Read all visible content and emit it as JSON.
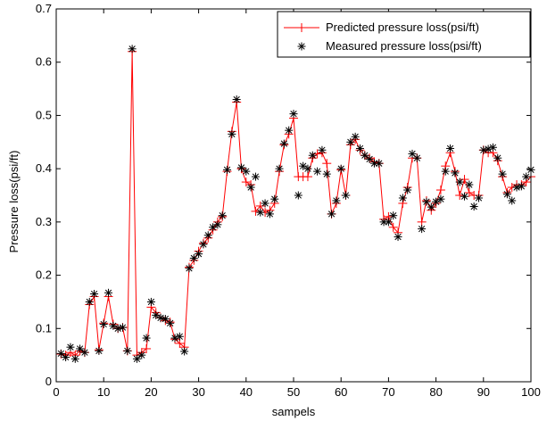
{
  "chart_data": {
    "type": "line",
    "xlabel": "sampels",
    "ylabel": "Pressure loss(psi/ft)",
    "xlim": [
      0,
      100
    ],
    "ylim": [
      0,
      0.7
    ],
    "xticks": [
      0,
      10,
      20,
      30,
      40,
      50,
      60,
      70,
      80,
      90,
      100
    ],
    "xtick_labels": [
      "0",
      "10",
      "20",
      "30",
      "40",
      "50",
      "60",
      "70",
      "80",
      "90",
      "100"
    ],
    "yticks": [
      0,
      0.1,
      0.2,
      0.3,
      0.4,
      0.5,
      0.6,
      0.7
    ],
    "ytick_labels": [
      "0",
      "0.1",
      "0.2",
      "0.3",
      "0.4",
      "0.5",
      "0.6",
      "0.7"
    ],
    "grid": false,
    "legend_position": "top-right",
    "x": [
      1,
      2,
      3,
      4,
      5,
      6,
      7,
      8,
      9,
      10,
      11,
      12,
      13,
      14,
      15,
      16,
      17,
      18,
      19,
      20,
      21,
      22,
      23,
      24,
      25,
      26,
      27,
      28,
      29,
      30,
      31,
      32,
      33,
      34,
      35,
      36,
      37,
      38,
      39,
      40,
      41,
      42,
      43,
      44,
      45,
      46,
      47,
      48,
      49,
      50,
      51,
      52,
      53,
      54,
      55,
      56,
      57,
      58,
      59,
      60,
      61,
      62,
      63,
      64,
      65,
      66,
      67,
      68,
      69,
      70,
      71,
      72,
      73,
      74,
      75,
      76,
      77,
      78,
      79,
      80,
      81,
      82,
      83,
      84,
      85,
      86,
      87,
      88,
      89,
      90,
      91,
      92,
      93,
      94,
      95,
      96,
      97,
      98,
      99,
      100
    ],
    "series": [
      {
        "name": "Predicted pressure loss(psi/ft)",
        "color": "#ff0000",
        "marker": "plus",
        "values": [
          0.052,
          0.05,
          0.055,
          0.05,
          0.058,
          0.055,
          0.145,
          0.16,
          0.06,
          0.11,
          0.16,
          0.108,
          0.1,
          0.102,
          0.058,
          0.62,
          0.05,
          0.055,
          0.062,
          0.14,
          0.13,
          0.12,
          0.115,
          0.112,
          0.08,
          0.072,
          0.065,
          0.215,
          0.228,
          0.245,
          0.26,
          0.27,
          0.285,
          0.3,
          0.31,
          0.395,
          0.47,
          0.525,
          0.4,
          0.375,
          0.37,
          0.32,
          0.33,
          0.318,
          0.322,
          0.335,
          0.395,
          0.445,
          0.465,
          0.495,
          0.385,
          0.385,
          0.385,
          0.42,
          0.428,
          0.43,
          0.41,
          0.315,
          0.335,
          0.398,
          0.35,
          0.445,
          0.455,
          0.435,
          0.425,
          0.42,
          0.413,
          0.41,
          0.305,
          0.31,
          0.29,
          0.28,
          0.335,
          0.365,
          0.42,
          0.42,
          0.3,
          0.34,
          0.322,
          0.335,
          0.36,
          0.405,
          0.43,
          0.395,
          0.35,
          0.38,
          0.355,
          0.35,
          0.35,
          0.435,
          0.43,
          0.43,
          0.415,
          0.385,
          0.355,
          0.365,
          0.37,
          0.37,
          0.375,
          0.385
        ]
      },
      {
        "name": "Measured pressure loss(psi/ft)",
        "color": "#000000",
        "marker": "asterisk",
        "values": [
          0.053,
          0.046,
          0.065,
          0.043,
          0.062,
          0.055,
          0.15,
          0.165,
          0.058,
          0.108,
          0.167,
          0.105,
          0.1,
          0.102,
          0.058,
          0.625,
          0.043,
          0.05,
          0.082,
          0.15,
          0.125,
          0.12,
          0.118,
          0.11,
          0.082,
          0.085,
          0.057,
          0.213,
          0.232,
          0.24,
          0.258,
          0.275,
          0.29,
          0.295,
          0.312,
          0.398,
          0.465,
          0.53,
          0.402,
          0.395,
          0.365,
          0.385,
          0.318,
          0.335,
          0.315,
          0.343,
          0.4,
          0.447,
          0.472,
          0.503,
          0.35,
          0.405,
          0.4,
          0.425,
          0.395,
          0.435,
          0.39,
          0.315,
          0.34,
          0.4,
          0.35,
          0.45,
          0.46,
          0.438,
          0.425,
          0.418,
          0.41,
          0.41,
          0.3,
          0.3,
          0.312,
          0.272,
          0.345,
          0.36,
          0.428,
          0.42,
          0.287,
          0.338,
          0.328,
          0.338,
          0.343,
          0.395,
          0.438,
          0.392,
          0.375,
          0.348,
          0.37,
          0.329,
          0.345,
          0.435,
          0.437,
          0.44,
          0.42,
          0.39,
          0.352,
          0.34,
          0.365,
          0.367,
          0.385,
          0.398
        ]
      }
    ]
  }
}
